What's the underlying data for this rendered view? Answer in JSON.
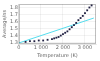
{
  "chart_data": {
    "type": "scatter",
    "xlabel": "Temperature (K)",
    "ylabel": "Average/ns",
    "xlim": [
      0,
      3500
    ],
    "ylim": [
      1.28,
      1.85
    ],
    "xticks": [
      0,
      {
        "value": 1000,
        "label": "1 000"
      },
      {
        "value": 2000,
        "label": "2 000"
      },
      {
        "value": 3000,
        "label": "3 000"
      }
    ],
    "yticks": [
      1.3,
      1.4,
      1.5,
      1.6,
      1.7,
      1.8
    ],
    "grid": true,
    "series": [
      {
        "type": "line",
        "color": "#55ddee",
        "x": [
          0,
          3400
        ],
        "values": [
          1.295,
          1.65
        ]
      },
      {
        "type": "scatter",
        "marker": "square",
        "color": "#222244",
        "x": [
          300,
          500,
          700,
          900,
          1100,
          1300,
          1500,
          1600,
          1700,
          1800,
          1900,
          2000,
          2100,
          2200,
          2300,
          2400,
          2500,
          2600,
          2700,
          2800,
          2900,
          3000,
          3100,
          3200,
          3300
        ],
        "values": [
          1.31,
          1.32,
          1.32,
          1.33,
          1.33,
          1.34,
          1.35,
          1.36,
          1.37,
          1.38,
          1.4,
          1.42,
          1.44,
          1.46,
          1.49,
          1.52,
          1.55,
          1.58,
          1.62,
          1.65,
          1.68,
          1.72,
          1.76,
          1.8,
          1.83
        ]
      }
    ]
  }
}
